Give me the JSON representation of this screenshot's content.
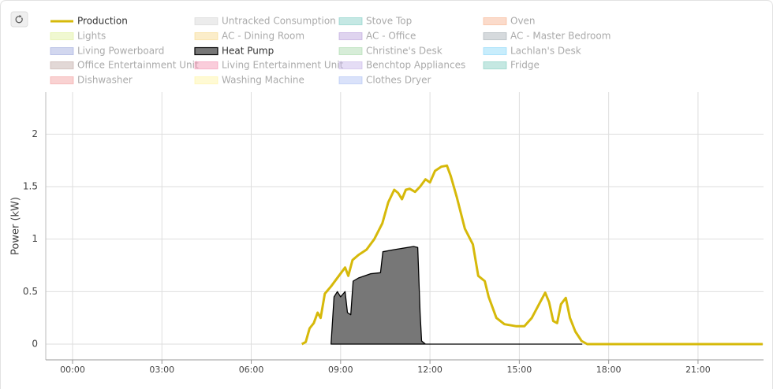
{
  "chart_data": {
    "type": "line",
    "y_label": "Power (kW)",
    "xlim": [
      -0.9,
      23.2
    ],
    "ylim": [
      -0.15,
      2.4
    ],
    "xticks": [
      {
        "value": 0,
        "label": "00:00"
      },
      {
        "value": 3,
        "label": "03:00"
      },
      {
        "value": 6,
        "label": "06:00"
      },
      {
        "value": 9,
        "label": "09:00"
      },
      {
        "value": 12,
        "label": "12:00"
      },
      {
        "value": 15,
        "label": "15:00"
      },
      {
        "value": 18,
        "label": "18:00"
      },
      {
        "value": 21,
        "label": "21:00"
      }
    ],
    "yticks": [
      0,
      0.5,
      1,
      1.5,
      2
    ],
    "grid": true,
    "series": [
      {
        "name": "Production",
        "color": "#d6b90a",
        "hidden": false,
        "x": [
          7.7,
          7.83,
          7.96,
          8.1,
          8.23,
          8.33,
          8.47,
          8.68,
          8.94,
          9.15,
          9.26,
          9.4,
          9.6,
          9.87,
          10.13,
          10.4,
          10.6,
          10.8,
          10.93,
          11.06,
          11.19,
          11.32,
          11.5,
          11.67,
          11.85,
          12.0,
          12.17,
          12.38,
          12.57,
          12.7,
          12.9,
          13.17,
          13.44,
          13.62,
          13.84,
          13.97,
          14.23,
          14.5,
          14.9,
          15.17,
          15.42,
          15.7,
          15.87,
          16.0,
          16.14,
          16.27,
          16.4,
          16.56,
          16.7,
          16.88,
          17.09,
          17.28,
          23.17
        ],
        "values": [
          0,
          0.02,
          0.15,
          0.2,
          0.3,
          0.25,
          0.48,
          0.55,
          0.65,
          0.73,
          0.65,
          0.8,
          0.85,
          0.9,
          1.0,
          1.15,
          1.35,
          1.47,
          1.44,
          1.38,
          1.47,
          1.48,
          1.45,
          1.5,
          1.57,
          1.54,
          1.65,
          1.69,
          1.7,
          1.6,
          1.4,
          1.1,
          0.95,
          0.65,
          0.6,
          0.45,
          0.25,
          0.19,
          0.17,
          0.17,
          0.25,
          0.4,
          0.49,
          0.4,
          0.22,
          0.2,
          0.38,
          0.44,
          0.25,
          0.12,
          0.03,
          0,
          0
        ]
      },
      {
        "name": "Untracked Consumption",
        "color": "#d4d4d4",
        "hidden": true
      },
      {
        "name": "Stove Top",
        "color": "#7fcdc4",
        "hidden": true
      },
      {
        "name": "Oven",
        "color": "#f7b08c",
        "hidden": true
      },
      {
        "name": "Lights",
        "color": "#ddef9a",
        "hidden": true
      },
      {
        "name": "AC - Dining Room",
        "color": "#f6d88a",
        "hidden": true
      },
      {
        "name": "AC - Office",
        "color": "#b79fdb",
        "hidden": true
      },
      {
        "name": "AC - Master Bedroom",
        "color": "#a3adb3",
        "hidden": true
      },
      {
        "name": "Living Powerboard",
        "color": "#9ba6db",
        "hidden": true
      },
      {
        "name": "Heat Pump",
        "color": "#777777",
        "hidden": false,
        "area": true,
        "x": [
          8.68,
          8.78,
          8.89,
          9.0,
          9.15,
          9.23,
          9.34,
          9.42,
          9.6,
          10.0,
          10.34,
          10.42,
          10.8,
          11.45,
          11.59,
          11.67,
          11.72,
          11.85,
          17.1
        ],
        "values": [
          0,
          0.45,
          0.5,
          0.45,
          0.5,
          0.3,
          0.28,
          0.6,
          0.63,
          0.67,
          0.68,
          0.88,
          0.9,
          0.93,
          0.92,
          0.3,
          0.03,
          0,
          0
        ]
      },
      {
        "name": "Christine's Desk",
        "color": "#a7d8a8",
        "hidden": true
      },
      {
        "name": "Lachlan's Desk",
        "color": "#84d6f8",
        "hidden": true
      },
      {
        "name": "Office Entertainment Unit",
        "color": "#bfa9a3",
        "hidden": true
      },
      {
        "name": "Living Entertainment Unit",
        "color": "#f490b0",
        "hidden": true
      },
      {
        "name": "Benchtop Appliances",
        "color": "#c6b4e8",
        "hidden": true
      },
      {
        "name": "Fridge",
        "color": "#7fccbe",
        "hidden": true
      },
      {
        "name": "Dishwasher",
        "color": "#f19c9c",
        "hidden": true
      },
      {
        "name": "Washing Machine",
        "color": "#fff3a0",
        "hidden": true
      },
      {
        "name": "Clothes Dryer",
        "color": "#adbff3",
        "hidden": true
      }
    ]
  }
}
